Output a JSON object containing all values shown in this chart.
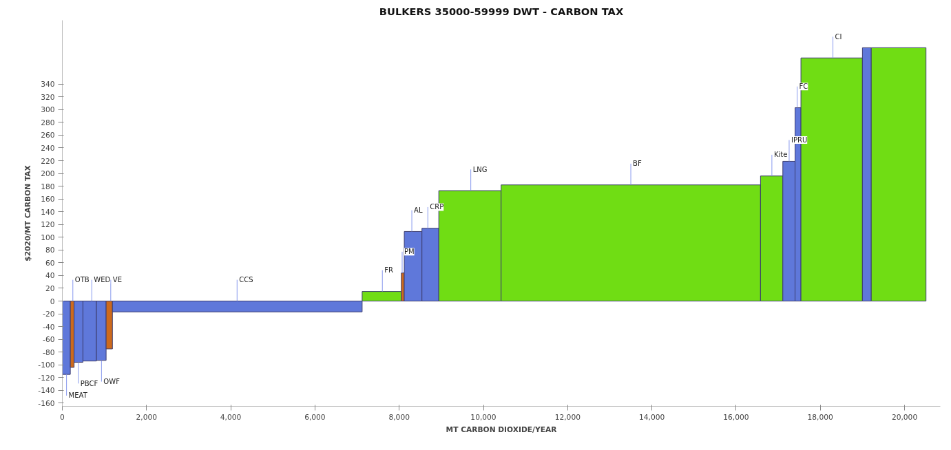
{
  "chart_data": {
    "type": "histogram",
    "title": "BULKERS 35000-59999 DWT - CARBON TAX",
    "xlabel": "MT CARBON DIOXIDE/YEAR",
    "ylabel": "$2020/MT CARBON TAX",
    "bins": [
      0,
      190,
      280,
      490,
      810,
      1040,
      1190,
      7120,
      8050,
      8120,
      8540,
      8940,
      10420,
      16580,
      17110,
      17400,
      17540,
      19000,
      19210,
      20510
    ],
    "values": [
      -115,
      -104,
      -96,
      -94,
      -93,
      -75,
      -17,
      15,
      44,
      109,
      114,
      173,
      182,
      196,
      219,
      303,
      381,
      397,
      397
    ],
    "colors": [
      "#5f78da",
      "#cd6a1c",
      "#5f78da",
      "#5f78da",
      "#5f78da",
      "#cd6a1c",
      "#5f78da",
      "#70dd14",
      "#cd6a1c",
      "#5f78da",
      "#5f78da",
      "#70dd14",
      "#70dd14",
      "#70dd14",
      "#5f78da",
      "#5f78da",
      "#70dd14",
      "#5f78da",
      "#70dd14"
    ],
    "xlim": [
      0,
      20850
    ],
    "ylim": [
      -165,
      440
    ],
    "xticks": [
      {
        "value": 0,
        "label": "0"
      },
      {
        "value": 2000,
        "label": "2,000"
      },
      {
        "value": 4000,
        "label": "4,000"
      },
      {
        "value": 6000,
        "label": "6,000"
      },
      {
        "value": 8000,
        "label": "8,000"
      },
      {
        "value": 10000,
        "label": "10,000"
      },
      {
        "value": 12000,
        "label": "12,000"
      },
      {
        "value": 14000,
        "label": "14,000"
      },
      {
        "value": 16000,
        "label": "16,000"
      },
      {
        "value": 18000,
        "label": "18,000"
      },
      {
        "value": 20000,
        "label": "20,000"
      }
    ],
    "yticks": [
      -160,
      -140,
      -120,
      -100,
      -80,
      -60,
      -40,
      -20,
      0,
      20,
      40,
      60,
      80,
      100,
      120,
      140,
      160,
      180,
      200,
      220,
      240,
      260,
      280,
      300,
      320,
      340
    ],
    "annotations": [
      {
        "text": "MEAT",
        "x": 100,
        "y": -115
      },
      {
        "text": "OTB",
        "x": 250,
        "y": 0
      },
      {
        "text": "PBCF",
        "x": 380,
        "y": -96
      },
      {
        "text": "WED",
        "x": 700,
        "y": 0
      },
      {
        "text": "OWF",
        "x": 930,
        "y": -93
      },
      {
        "text": "VE",
        "x": 1150,
        "y": 0
      },
      {
        "text": "CCS",
        "x": 4150,
        "y": 0
      },
      {
        "text": "FR",
        "x": 7600,
        "y": 15
      },
      {
        "text": "PM",
        "x": 8070,
        "y": 44
      },
      {
        "text": "AL",
        "x": 8300,
        "y": 109
      },
      {
        "text": "CRP",
        "x": 8680,
        "y": 114
      },
      {
        "text": "LNG",
        "x": 9700,
        "y": 173
      },
      {
        "text": "BF",
        "x": 13500,
        "y": 182
      },
      {
        "text": "Kite",
        "x": 16850,
        "y": 196
      },
      {
        "text": "IPRU",
        "x": 17260,
        "y": 219
      },
      {
        "text": "FC",
        "x": 17450,
        "y": 303
      },
      {
        "text": "CI",
        "x": 18300,
        "y": 381
      }
    ]
  }
}
